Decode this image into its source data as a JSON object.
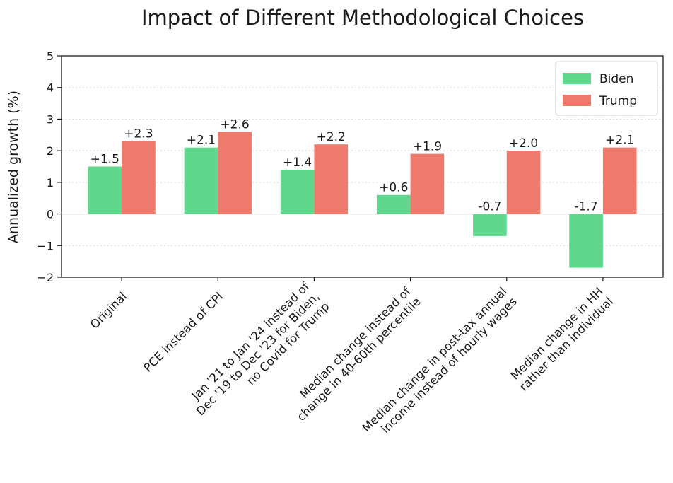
{
  "chart_data": {
    "type": "bar",
    "title": "Impact of Different Methodological Choices",
    "xlabel": "",
    "ylabel": "Annualized growth (%)",
    "ylim": [
      -2,
      5
    ],
    "yticks": [
      "−2",
      "−1",
      "0",
      "1",
      "2",
      "3",
      "4",
      "5"
    ],
    "grid": "horizontal dotted",
    "legend_position": "top-right",
    "categories": [
      [
        "Original"
      ],
      [
        "PCE instead of CPI"
      ],
      [
        "Jan '21 to Jan '24 instead of",
        "Dec '19 to Dec '23 for Biden,",
        "no Covid for Trump"
      ],
      [
        "Median change instead of",
        "change in 40-60th percentile"
      ],
      [
        "Median change in post-tax annual",
        "income instead of hourly wages"
      ],
      [
        "Median change in HH",
        "rather than individual"
      ]
    ],
    "series": [
      {
        "name": "Biden",
        "color": "#5fd88e",
        "values": [
          1.5,
          2.1,
          1.4,
          0.6,
          -0.7,
          -1.7
        ],
        "labels": [
          "+1.5",
          "+2.1",
          "+1.4",
          "+0.6",
          "-0.7",
          "-1.7"
        ]
      },
      {
        "name": "Trump",
        "color": "#ee7a6e",
        "values": [
          2.3,
          2.6,
          2.2,
          1.9,
          2.0,
          2.1
        ],
        "labels": [
          "+2.3",
          "+2.6",
          "+2.2",
          "+1.9",
          "+2.0",
          "+2.1"
        ]
      }
    ]
  }
}
